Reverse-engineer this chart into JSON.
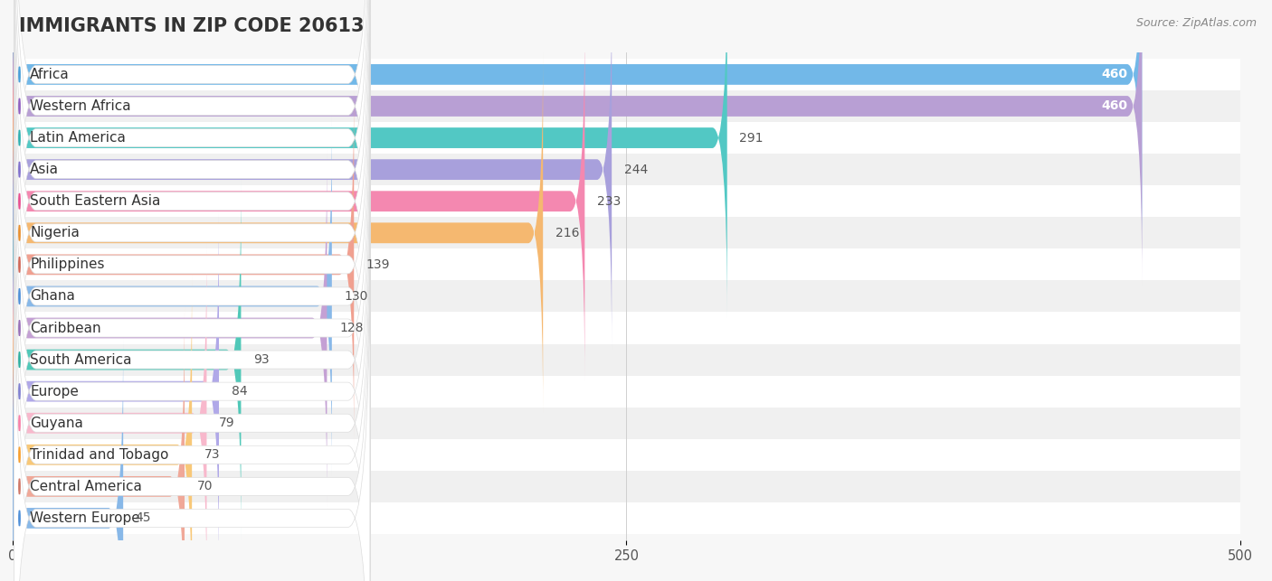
{
  "title": "IMMIGRANTS IN ZIP CODE 20613",
  "source": "Source: ZipAtlas.com",
  "categories": [
    "Africa",
    "Western Africa",
    "Latin America",
    "Asia",
    "South Eastern Asia",
    "Nigeria",
    "Philippines",
    "Ghana",
    "Caribbean",
    "South America",
    "Europe",
    "Guyana",
    "Trinidad and Tobago",
    "Central America",
    "Western Europe"
  ],
  "values": [
    460,
    460,
    291,
    244,
    233,
    216,
    139,
    130,
    128,
    93,
    84,
    79,
    73,
    70,
    45
  ],
  "bar_colors": [
    "#72b8e8",
    "#b89fd4",
    "#52c8c4",
    "#a8a0dc",
    "#f488b0",
    "#f5b870",
    "#f0a090",
    "#88b8e8",
    "#c4a0d4",
    "#50c8b8",
    "#b0a8e8",
    "#f8b8cc",
    "#f8c878",
    "#f0a898",
    "#88b8e8"
  ],
  "dot_colors": [
    "#4a9fd8",
    "#9060c0",
    "#30b0b0",
    "#8070cc",
    "#e85090",
    "#e89030",
    "#d06858",
    "#5090d8",
    "#9870b8",
    "#30b0a0",
    "#8080d0",
    "#f880a8",
    "#f8a030",
    "#d07868",
    "#5090d8"
  ],
  "background_color": "#f7f7f7",
  "row_colors": [
    "#ffffff",
    "#f0f0f0"
  ],
  "xlim": [
    0,
    500
  ],
  "xticks": [
    0,
    250,
    500
  ],
  "title_fontsize": 15,
  "label_fontsize": 11,
  "value_fontsize": 10,
  "bar_height": 0.65
}
